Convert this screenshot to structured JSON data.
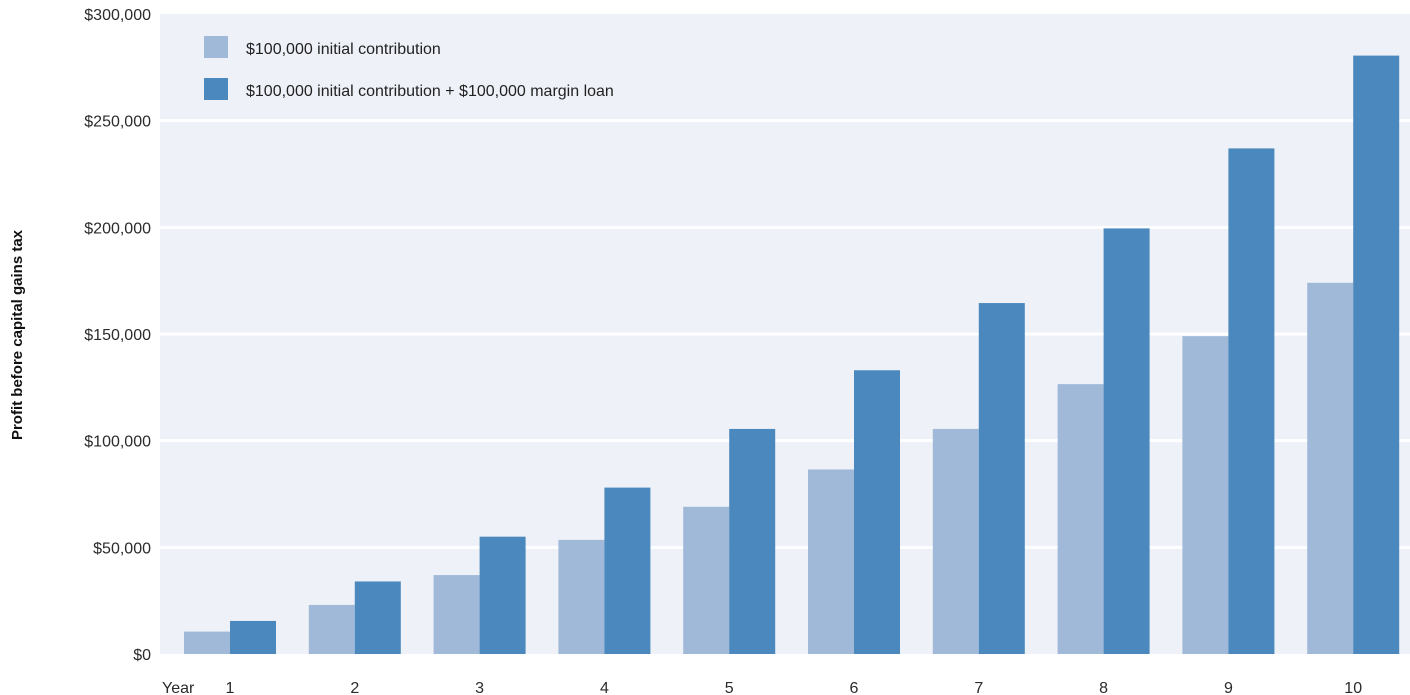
{
  "chart_data": {
    "type": "bar",
    "title": "",
    "xlabel": "",
    "x_axis_prefix": "Year",
    "ylabel": "Profit before capital gains tax",
    "ylim": [
      0,
      300000
    ],
    "yticks": [
      0,
      50000,
      100000,
      150000,
      200000,
      250000,
      300000
    ],
    "ytick_labels": [
      "$0",
      "$50,000",
      "$100,000",
      "$150,000",
      "$200,000",
      "$250,000",
      "$300,000"
    ],
    "categories": [
      "1",
      "2",
      "3",
      "4",
      "5",
      "6",
      "7",
      "8",
      "9",
      "10"
    ],
    "grid": true,
    "legend_position": "top-left",
    "series": [
      {
        "name": "$100,000 initial contribution",
        "color": "#a0b9d9",
        "values": [
          10500,
          23000,
          37000,
          53500,
          69000,
          86500,
          105500,
          126500,
          149000,
          174000
        ]
      },
      {
        "name": "$100,000 initial contribution + $100,000 margin loan",
        "color": "#4a88bd",
        "values": [
          15500,
          34000,
          55000,
          78000,
          105500,
          133000,
          164500,
          199500,
          237000,
          280500
        ]
      }
    ]
  },
  "colors": {
    "plot_background": "#eef1f8",
    "gridline": "#ffffff"
  }
}
